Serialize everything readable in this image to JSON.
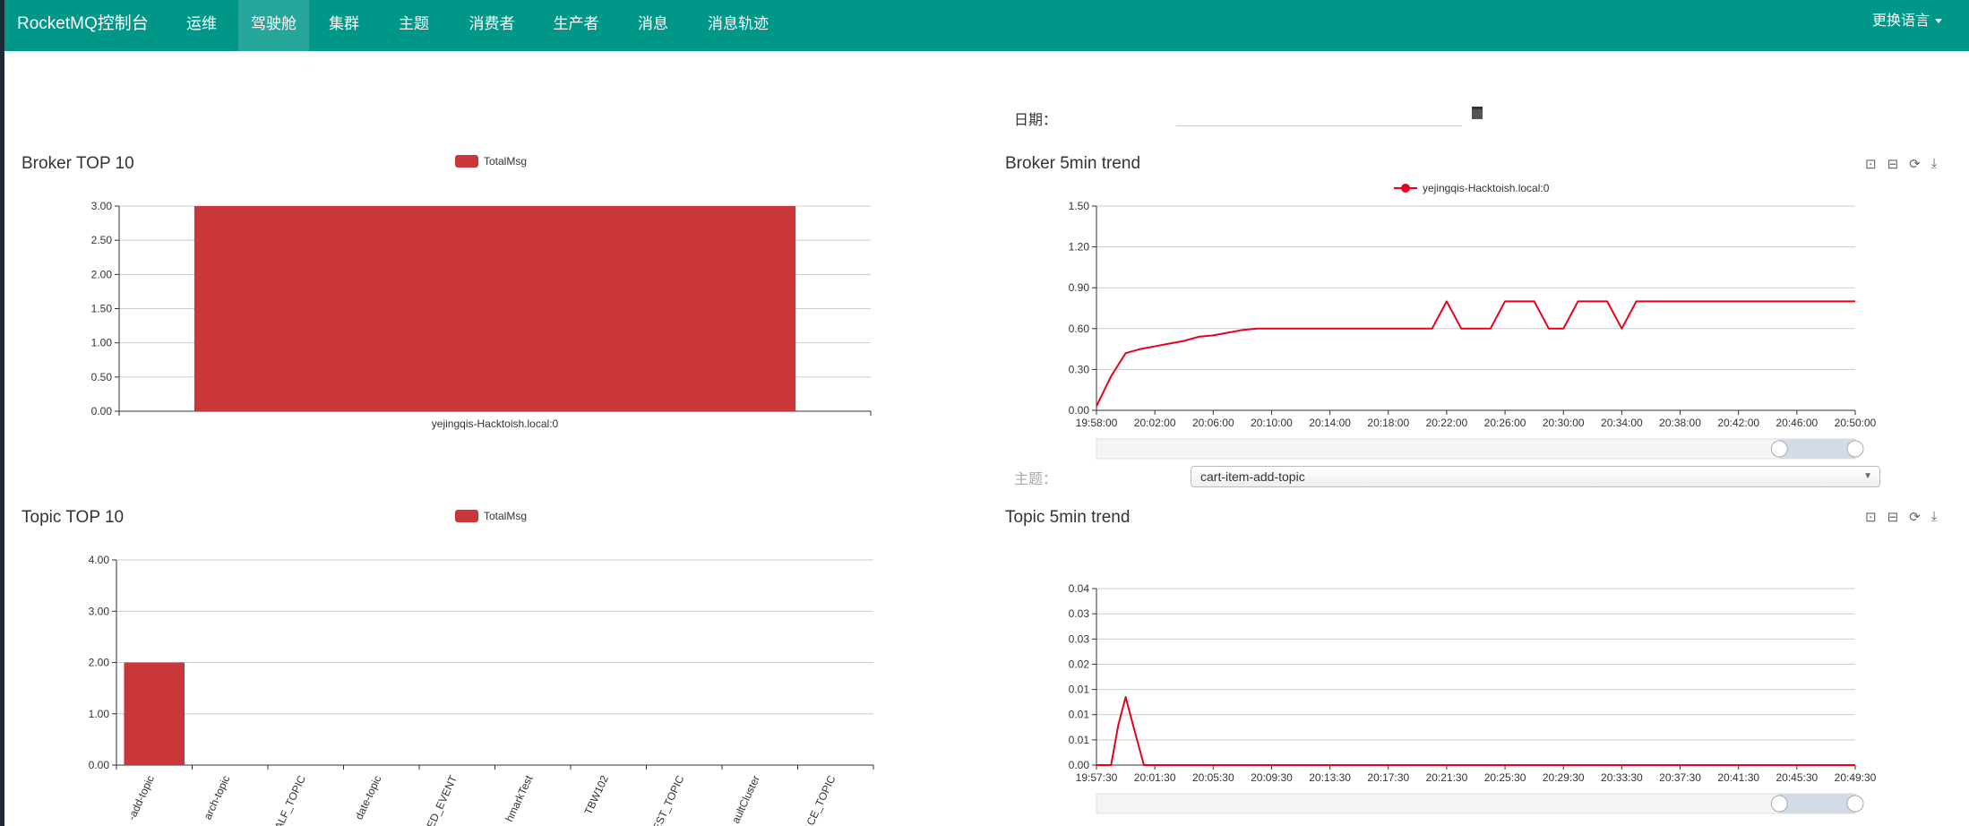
{
  "nav": {
    "brand": "RocketMQ控制台",
    "items": [
      {
        "label": "运维"
      },
      {
        "label": "驾驶舱",
        "active": true
      },
      {
        "label": "集群"
      },
      {
        "label": "主题"
      },
      {
        "label": "消费者"
      },
      {
        "label": "生产者"
      },
      {
        "label": "消息"
      },
      {
        "label": "消息轨迹"
      }
    ],
    "language": "更换语言"
  },
  "filter": {
    "date_label": "日期：",
    "date_value": "",
    "topic_label": "主题：",
    "topic_selected": "cart-item-add-topic"
  },
  "toolbar_icons": [
    "zoom-icon",
    "zoom-reset-icon",
    "restore-icon",
    "download-icon"
  ],
  "colors": {
    "nav": "#009688",
    "bar": "#c9373a",
    "line": "#e8001c"
  },
  "chart_data": [
    {
      "id": "broker_top",
      "type": "bar",
      "title": "Broker TOP 10",
      "legend": "TotalMsg",
      "categories": [
        "yejingqis-Hacktoish.local:0"
      ],
      "values": [
        3
      ],
      "ylim": [
        0,
        3
      ],
      "yticks": [
        "0.00",
        "0.50",
        "1.00",
        "1.50",
        "2.00",
        "2.50",
        "3.00"
      ],
      "grid": true,
      "legend_position": "top-center"
    },
    {
      "id": "broker_trend",
      "type": "line",
      "title": "Broker 5min trend",
      "series": [
        {
          "name": "yejingqis-Hacktoish.local:0",
          "x": [
            "19:58",
            "19:59",
            "20:00",
            "20:01",
            "20:02",
            "20:03",
            "20:04",
            "20:05",
            "20:06",
            "20:07",
            "20:08",
            "20:09",
            "20:12",
            "20:15",
            "20:18",
            "20:20",
            "20:21",
            "20:22",
            "20:23",
            "20:24",
            "20:25",
            "20:26",
            "20:27",
            "20:28",
            "20:29",
            "20:30",
            "20:31",
            "20:32",
            "20:33",
            "20:34",
            "20:35",
            "20:40",
            "20:45",
            "20:50"
          ],
          "values": [
            0.03,
            0.25,
            0.42,
            0.45,
            0.47,
            0.49,
            0.51,
            0.54,
            0.55,
            0.57,
            0.59,
            0.6,
            0.6,
            0.6,
            0.6,
            0.6,
            0.6,
            0.8,
            0.6,
            0.6,
            0.6,
            0.8,
            0.8,
            0.8,
            0.6,
            0.6,
            0.8,
            0.8,
            0.8,
            0.6,
            0.8,
            0.8,
            0.8,
            0.8
          ]
        }
      ],
      "xrange": [
        "19:58",
        "20:50"
      ],
      "xticks": [
        "19:58:00",
        "20:02:00",
        "20:06:00",
        "20:10:00",
        "20:14:00",
        "20:18:00",
        "20:22:00",
        "20:26:00",
        "20:30:00",
        "20:34:00",
        "20:38:00",
        "20:42:00",
        "20:46:00",
        "20:50:00"
      ],
      "ylim": [
        0,
        1.5
      ],
      "yticks": [
        "0.00",
        "0.30",
        "0.60",
        "0.90",
        "1.20",
        "1.50"
      ],
      "grid": true,
      "legend_position": "top-center",
      "datazoom": true
    },
    {
      "id": "topic_top",
      "type": "bar",
      "title": "Topic TOP 10",
      "legend": "TotalMsg",
      "categories": [
        "-add-topic",
        "arch-topic",
        "ALF_TOPIC",
        "date-topic",
        "ED_EVENT",
        "hmarkTest",
        "TBW102",
        "EST_TOPIC",
        "aultCluster",
        "ACE_TOPIC"
      ],
      "values": [
        2,
        0,
        0,
        0,
        0,
        0,
        0,
        0,
        0,
        0
      ],
      "ylim": [
        0,
        4
      ],
      "yticks": [
        "0.00",
        "1.00",
        "2.00",
        "3.00",
        "4.00"
      ],
      "grid": true,
      "legend_position": "top-center"
    },
    {
      "id": "topic_trend",
      "type": "line",
      "title": "Topic 5min trend",
      "series": [
        {
          "x": [
            "19:57:30",
            "19:58:30",
            "19:59:00",
            "19:59:30",
            "20:00:00",
            "20:00:45",
            "20:49:30"
          ],
          "values": [
            0,
            0,
            0.008,
            0.0135,
            0.008,
            0,
            0
          ]
        }
      ],
      "xrange": [
        "19:57:30",
        "20:49:30"
      ],
      "xticks": [
        "19:57:30",
        "20:01:30",
        "20:05:30",
        "20:09:30",
        "20:13:30",
        "20:17:30",
        "20:21:30",
        "20:25:30",
        "20:29:30",
        "20:33:30",
        "20:37:30",
        "20:41:30",
        "20:45:30",
        "20:49:30"
      ],
      "ylim": [
        0,
        0.035
      ],
      "yticks": [
        "0.00",
        "0.01",
        "0.01",
        "0.01",
        "0.02",
        "0.03",
        "0.03",
        "0.04"
      ],
      "grid": true,
      "datazoom": true
    }
  ]
}
